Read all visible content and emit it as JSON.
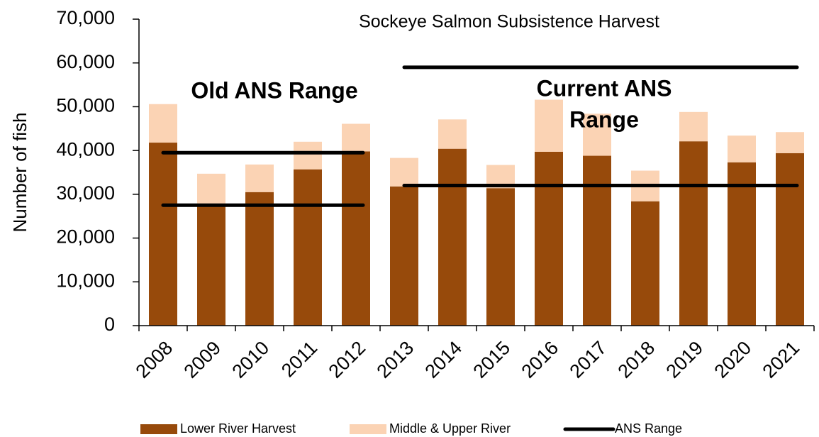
{
  "chart_data": {
    "type": "stacked_bar",
    "title": "Sockeye Salmon Subsistence Harvest",
    "y_label": "Number of fish",
    "categories": [
      "2008",
      "2009",
      "2010",
      "2011",
      "2012",
      "2013",
      "2014",
      "2015",
      "2016",
      "2017",
      "2018",
      "2019",
      "2020",
      "2021"
    ],
    "series": [
      {
        "name": "Lower River Harvest",
        "color": "#974a0b",
        "values": [
          41800,
          27800,
          30500,
          35700,
          39800,
          31800,
          40400,
          31400,
          39700,
          38800,
          28400,
          42100,
          37300,
          39400
        ]
      },
      {
        "name": "Middle & Upper River",
        "color": "#fbd3b4",
        "values": [
          8800,
          6900,
          6300,
          6300,
          6300,
          6500,
          6700,
          5300,
          11900,
          9600,
          7000,
          6700,
          6100,
          4800
        ]
      }
    ],
    "ans": {
      "name": "ANS Range",
      "color": "#000000",
      "ranges": [
        {
          "label_lines": [
            "Old ANS Range"
          ],
          "start": "2008",
          "end": "2012",
          "low": 27500,
          "high": 39500
        },
        {
          "label_lines": [
            "Current ANS",
            "Range"
          ],
          "start": "2013",
          "end": "2021",
          "low": 32000,
          "high": 59000
        }
      ]
    },
    "ylim": [
      0,
      70000
    ],
    "yticks": [
      {
        "value": 0,
        "label": "0"
      },
      {
        "value": 10000,
        "label": "10,000"
      },
      {
        "value": 20000,
        "label": "20,000"
      },
      {
        "value": 30000,
        "label": "30,000"
      },
      {
        "value": 40000,
        "label": "40,000"
      },
      {
        "value": 50000,
        "label": "50,000"
      },
      {
        "value": 60000,
        "label": "60,000"
      },
      {
        "value": 70000,
        "label": "70,000"
      }
    ],
    "grid": false
  }
}
